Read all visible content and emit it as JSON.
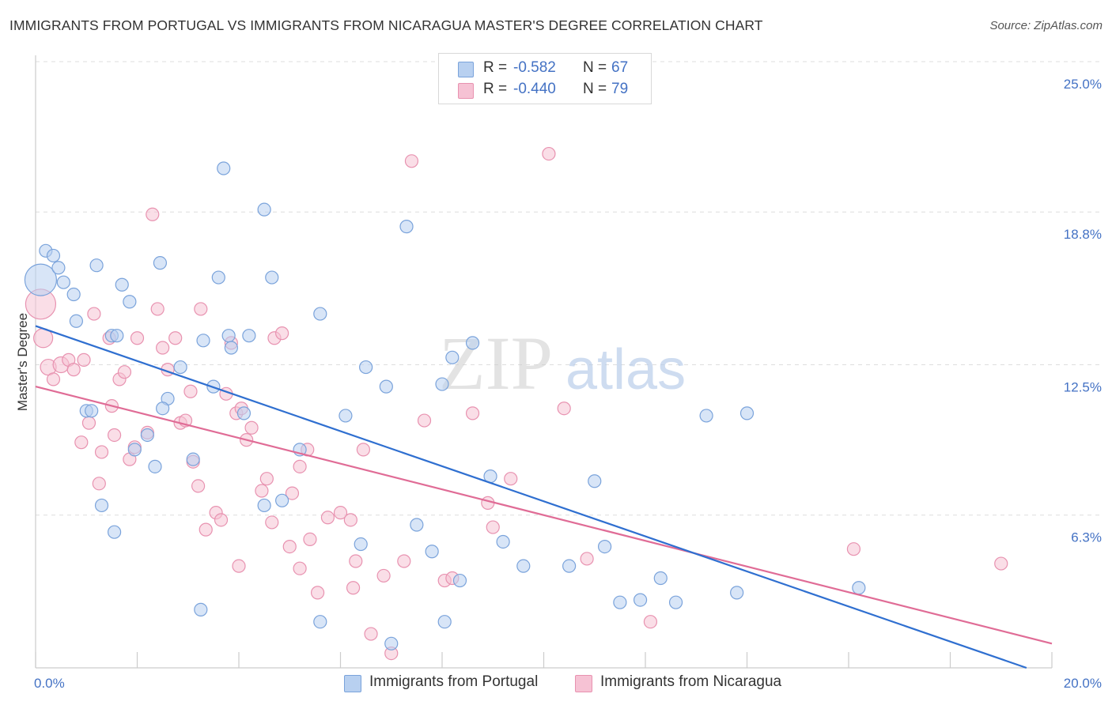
{
  "title": "IMMIGRANTS FROM PORTUGAL VS IMMIGRANTS FROM NICARAGUA MASTER'S DEGREE CORRELATION CHART",
  "source": "Source: ZipAtlas.com",
  "watermark": {
    "zip": "ZIP",
    "atlas": "atlas"
  },
  "colors": {
    "portugal_fill": "#b8d0f0",
    "portugal_stroke": "#7aa3db",
    "portugal_line": "#2f6fd0",
    "nicaragua_fill": "#f6c2d4",
    "nicaragua_stroke": "#e892b0",
    "nicaragua_line": "#e06c96",
    "axis_value": "#4472c4",
    "grid": "#dddddd"
  },
  "legend": {
    "rows": [
      {
        "r_label": "R =",
        "r_value": "-0.582",
        "n_label": "N =",
        "n_value": "67"
      },
      {
        "r_label": "R =",
        "r_value": "-0.440",
        "n_label": "N =",
        "n_value": "79"
      }
    ]
  },
  "bottom_legend": {
    "portugal": "Immigrants from Portugal",
    "nicaragua": "Immigrants from Nicaragua"
  },
  "chart_data": {
    "type": "scatter",
    "title": "IMMIGRANTS FROM PORTUGAL VS IMMIGRANTS FROM NICARAGUA MASTER'S DEGREE CORRELATION CHART",
    "xlabel": "",
    "ylabel": "Master's Degree",
    "xlim": [
      0,
      20
    ],
    "ylim": [
      0,
      25
    ],
    "x_tick_labels": [
      "0.0%",
      "20.0%"
    ],
    "y_ticks": [
      6.3,
      12.5,
      18.8,
      25.0
    ],
    "y_tick_labels": [
      "6.3%",
      "12.5%",
      "18.8%",
      "25.0%"
    ],
    "grid": "horizontal dashed",
    "legend_position": "top-center",
    "series": [
      {
        "name": "Immigrants from Portugal",
        "trend": {
          "x": [
            0,
            19.5
          ],
          "y": [
            14.1,
            0.0
          ]
        },
        "points": [
          [
            0.1,
            16.0
          ],
          [
            0.2,
            17.2
          ],
          [
            0.35,
            17.0
          ],
          [
            0.45,
            16.5
          ],
          [
            0.55,
            15.9
          ],
          [
            0.75,
            15.4
          ],
          [
            0.8,
            14.3
          ],
          [
            1.2,
            16.6
          ],
          [
            1.7,
            15.8
          ],
          [
            1.85,
            15.1
          ],
          [
            1.5,
            13.7
          ],
          [
            1.6,
            13.7
          ],
          [
            2.45,
            16.7
          ],
          [
            3.7,
            20.6
          ],
          [
            4.5,
            18.9
          ],
          [
            3.6,
            16.1
          ],
          [
            4.65,
            16.1
          ],
          [
            5.6,
            14.6
          ],
          [
            3.3,
            13.5
          ],
          [
            3.8,
            13.7
          ],
          [
            4.2,
            13.7
          ],
          [
            3.85,
            13.2
          ],
          [
            2.85,
            12.4
          ],
          [
            3.5,
            11.6
          ],
          [
            2.6,
            11.1
          ],
          [
            2.5,
            10.7
          ],
          [
            1.0,
            10.6
          ],
          [
            1.1,
            10.6
          ],
          [
            4.1,
            10.5
          ],
          [
            6.1,
            10.4
          ],
          [
            6.5,
            12.4
          ],
          [
            6.9,
            11.6
          ],
          [
            7.3,
            18.2
          ],
          [
            8.6,
            13.4
          ],
          [
            8.2,
            12.8
          ],
          [
            8.0,
            11.7
          ],
          [
            2.2,
            9.6
          ],
          [
            1.95,
            9.0
          ],
          [
            3.1,
            8.6
          ],
          [
            2.35,
            8.3
          ],
          [
            5.2,
            9.0
          ],
          [
            1.3,
            6.7
          ],
          [
            4.5,
            6.7
          ],
          [
            4.85,
            6.9
          ],
          [
            8.95,
            7.9
          ],
          [
            11.0,
            7.7
          ],
          [
            13.2,
            10.4
          ],
          [
            14.0,
            10.5
          ],
          [
            7.5,
            5.9
          ],
          [
            6.4,
            5.1
          ],
          [
            7.8,
            4.8
          ],
          [
            9.2,
            5.2
          ],
          [
            9.6,
            4.2
          ],
          [
            10.5,
            4.2
          ],
          [
            11.2,
            5.0
          ],
          [
            12.3,
            3.7
          ],
          [
            1.55,
            5.6
          ],
          [
            3.25,
            2.4
          ],
          [
            5.6,
            1.9
          ],
          [
            8.05,
            1.9
          ],
          [
            8.35,
            3.6
          ],
          [
            11.5,
            2.7
          ],
          [
            11.9,
            2.8
          ],
          [
            12.6,
            2.7
          ],
          [
            13.8,
            3.1
          ],
          [
            16.2,
            3.3
          ],
          [
            7.0,
            1.0
          ]
        ]
      },
      {
        "name": "Immigrants from Nicaragua",
        "trend": {
          "x": [
            0,
            20
          ],
          "y": [
            11.6,
            1.0
          ]
        },
        "points": [
          [
            0.1,
            15.0
          ],
          [
            0.15,
            13.6
          ],
          [
            0.25,
            12.4
          ],
          [
            0.35,
            11.9
          ],
          [
            0.5,
            12.5
          ],
          [
            0.65,
            12.7
          ],
          [
            0.75,
            12.3
          ],
          [
            0.9,
            9.3
          ],
          [
            1.05,
            10.1
          ],
          [
            0.95,
            12.7
          ],
          [
            1.15,
            14.6
          ],
          [
            1.45,
            13.6
          ],
          [
            1.65,
            11.9
          ],
          [
            1.75,
            12.2
          ],
          [
            1.5,
            10.8
          ],
          [
            1.55,
            9.6
          ],
          [
            1.3,
            8.9
          ],
          [
            1.25,
            7.6
          ],
          [
            1.85,
            8.6
          ],
          [
            1.95,
            9.1
          ],
          [
            2.0,
            13.6
          ],
          [
            2.2,
            9.7
          ],
          [
            2.3,
            18.7
          ],
          [
            2.4,
            14.8
          ],
          [
            2.5,
            13.2
          ],
          [
            2.6,
            12.3
          ],
          [
            2.75,
            13.6
          ],
          [
            2.85,
            10.1
          ],
          [
            2.95,
            10.2
          ],
          [
            3.05,
            11.4
          ],
          [
            3.25,
            14.8
          ],
          [
            3.1,
            8.5
          ],
          [
            3.2,
            7.5
          ],
          [
            3.35,
            5.7
          ],
          [
            3.55,
            6.4
          ],
          [
            3.65,
            6.1
          ],
          [
            3.75,
            11.3
          ],
          [
            3.85,
            13.4
          ],
          [
            3.95,
            10.5
          ],
          [
            4.05,
            10.7
          ],
          [
            4.15,
            9.4
          ],
          [
            4.25,
            9.9
          ],
          [
            4.45,
            7.3
          ],
          [
            4.55,
            7.8
          ],
          [
            4.7,
            13.6
          ],
          [
            4.85,
            13.8
          ],
          [
            5.05,
            7.2
          ],
          [
            5.2,
            8.3
          ],
          [
            5.35,
            9.0
          ],
          [
            4.0,
            4.2
          ],
          [
            4.65,
            6.0
          ],
          [
            5.0,
            5.0
          ],
          [
            5.2,
            4.1
          ],
          [
            5.4,
            5.3
          ],
          [
            5.55,
            3.1
          ],
          [
            5.75,
            6.2
          ],
          [
            6.0,
            6.4
          ],
          [
            6.2,
            6.1
          ],
          [
            6.3,
            4.4
          ],
          [
            6.25,
            3.3
          ],
          [
            6.45,
            9.0
          ],
          [
            6.6,
            1.4
          ],
          [
            6.85,
            3.8
          ],
          [
            7.0,
            0.6
          ],
          [
            7.25,
            4.4
          ],
          [
            7.4,
            20.9
          ],
          [
            7.65,
            10.2
          ],
          [
            8.05,
            3.6
          ],
          [
            8.2,
            3.7
          ],
          [
            8.6,
            10.5
          ],
          [
            8.9,
            6.8
          ],
          [
            9.0,
            5.8
          ],
          [
            9.35,
            7.8
          ],
          [
            10.1,
            21.2
          ],
          [
            10.4,
            10.7
          ],
          [
            10.85,
            4.5
          ],
          [
            12.1,
            1.9
          ],
          [
            16.1,
            4.9
          ],
          [
            19.0,
            4.3
          ]
        ]
      }
    ]
  }
}
